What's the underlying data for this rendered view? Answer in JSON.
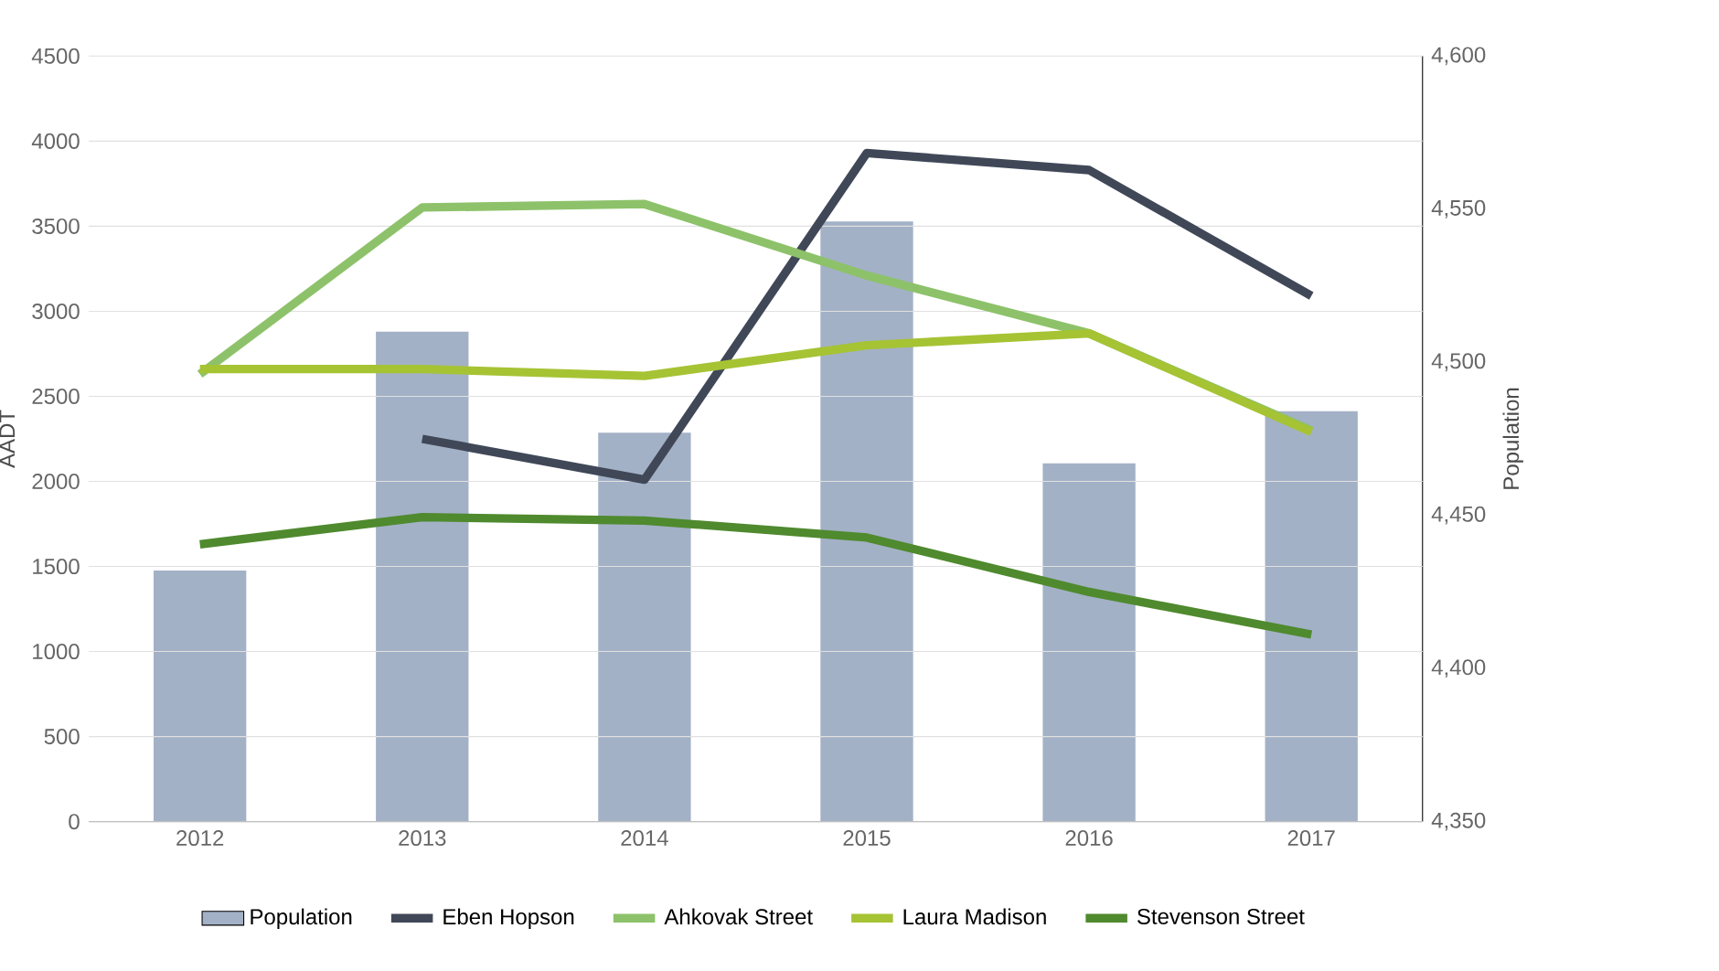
{
  "chart_data": {
    "type": "line",
    "categories": [
      "2012",
      "2013",
      "2014",
      "2015",
      "2016",
      "2017"
    ],
    "ylabel": "AADT",
    "y2label": "Population",
    "ylim": [
      0,
      4500
    ],
    "yticks": [
      0,
      500,
      1000,
      1500,
      2000,
      2500,
      3000,
      3500,
      4000,
      4500
    ],
    "y2lim": [
      4350,
      4600
    ],
    "y2ticks": [
      {
        "value": 4350,
        "label": "4,350"
      },
      {
        "value": 4400,
        "label": "4,400"
      },
      {
        "value": 4450,
        "label": "4,450"
      },
      {
        "value": 4500,
        "label": "4,500"
      },
      {
        "value": 4550,
        "label": "4,550"
      },
      {
        "value": 4600,
        "label": "4,600"
      }
    ],
    "grid": "y",
    "legend": "bottom",
    "series": [
      {
        "name": "Population",
        "type": "bar",
        "axis": "y2",
        "color": "#a3b1c6",
        "values": [
          4432,
          4510,
          4477,
          4546,
          4467,
          4484
        ]
      },
      {
        "name": "Eben Hopson",
        "color": "#404858",
        "values": [
          null,
          2250,
          2010,
          3930,
          3830,
          3090
        ]
      },
      {
        "name": "Ahkovak Street",
        "color": "#8dc26a",
        "values": [
          2630,
          3610,
          3630,
          3210,
          2870,
          2300
        ]
      },
      {
        "name": "Laura Madison",
        "color": "#a6c334",
        "values": [
          2660,
          2660,
          2620,
          2800,
          2870,
          2290
        ]
      },
      {
        "name": "Stevenson Street",
        "color": "#4f8a2e",
        "values": [
          1630,
          1790,
          1770,
          1670,
          1350,
          1100
        ]
      }
    ]
  }
}
